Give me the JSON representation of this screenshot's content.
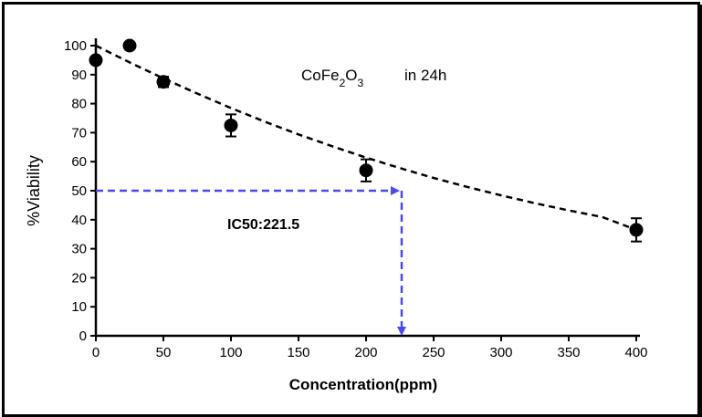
{
  "chart_data": {
    "type": "scatter",
    "title": "",
    "xlabel": "Concentration(ppm)",
    "ylabel": "%Viability",
    "xlim": [
      0,
      400
    ],
    "ylim": [
      0,
      100
    ],
    "x_ticks": [
      0,
      50,
      100,
      150,
      200,
      250,
      300,
      350,
      400
    ],
    "y_ticks": [
      0,
      10,
      20,
      30,
      40,
      50,
      60,
      70,
      80,
      90,
      100
    ],
    "grid": false,
    "legend": "none",
    "series": [
      {
        "x": [
          0,
          25,
          50,
          100,
          200,
          400
        ],
        "y": [
          95,
          100,
          87.5,
          72.5,
          57,
          36.5
        ],
        "error": [
          0,
          0,
          1.8,
          3.8,
          3.8,
          4
        ]
      }
    ],
    "fit_curve": {
      "style": "dashed",
      "x": [
        0,
        25,
        50,
        75,
        100,
        125,
        150,
        175,
        200,
        225,
        250,
        275,
        300,
        325,
        350,
        375,
        400
      ],
      "y": [
        100,
        94.2,
        88.7,
        83.5,
        78.5,
        73.8,
        69.4,
        65.3,
        61.4,
        57.8,
        54.4,
        51.3,
        48.4,
        45.7,
        43.2,
        40.9,
        36.5
      ]
    },
    "annotations": {
      "formula_base": "CoFe",
      "formula_sub1": "2",
      "formula_mid": "O",
      "formula_sub2": "3",
      "formula_suffix": "in 24h",
      "ic50_label": "IC50:221.5",
      "ic50_x": 225,
      "ic50_y": 50
    },
    "colors": {
      "data": "#000000",
      "fit": "#000000",
      "ic50_guide": "#4a4ae6"
    }
  }
}
